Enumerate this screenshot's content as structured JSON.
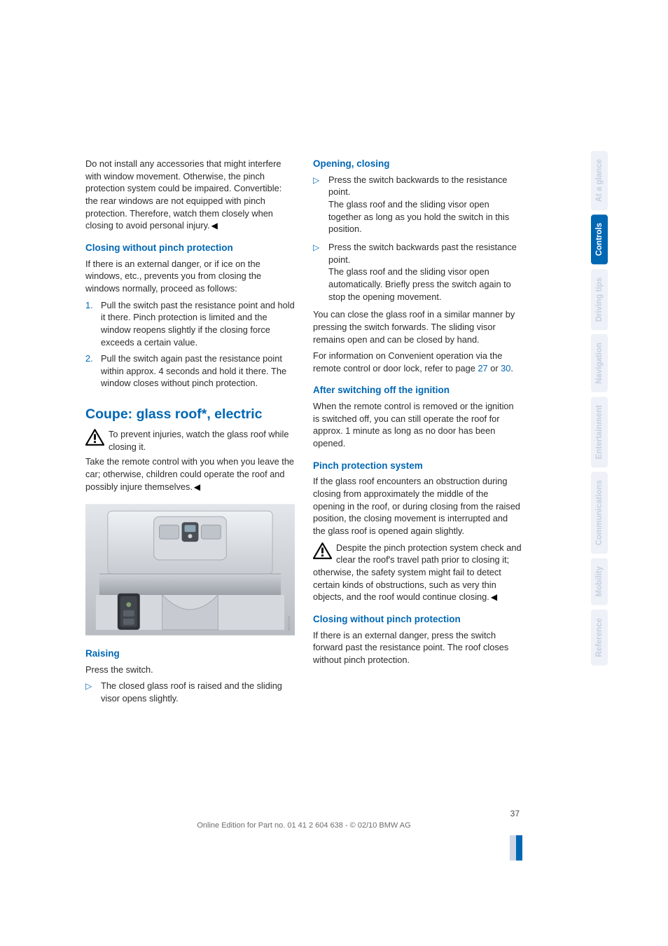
{
  "left": {
    "intro": "Do not install any accessories that might interfere with window movement. Otherwise, the pinch protection system could be impaired. Convertible: the rear windows are not equipped with pinch protection. Therefore, watch them closely when closing to avoid personal injury.",
    "h_cwpp": "Closing without pinch protection",
    "cwpp_intro": "If there is an external danger, or if ice on the windows, etc., prevents you from closing the windows normally, proceed as follows:",
    "ol": [
      "Pull the switch past the resistance point and hold it there. Pinch protection is limited and the window reopens slightly if the closing force exceeds a certain value.",
      "Pull the switch again past the resistance point within approx. 4 seconds and hold it there. The window closes without pinch protection."
    ],
    "h_section": "Coupe: glass roof*, electric",
    "warn1": "To prevent injuries, watch the glass roof while closing it.",
    "warn1b": "Take the remote control with you when you leave the car; otherwise, children could operate the roof and possibly injure themselves.",
    "h_raising": "Raising",
    "raising_p1": "Press the switch.",
    "raising_li": "The closed glass roof is raised and the sliding visor opens slightly."
  },
  "right": {
    "h_open": "Opening, closing",
    "open_li1a": "Press the switch backwards to the resistance point.",
    "open_li1b": "The glass roof and the sliding visor open together as long as you hold the switch in this position.",
    "open_li2a": "Press the switch backwards past the resistance point.",
    "open_li2b": "The glass roof and the sliding visor open automatically. Briefly press the switch again to stop the opening movement.",
    "open_p1": "You can close the glass roof in a similar manner by pressing the switch forwards. The sliding visor remains open and can be closed by hand.",
    "open_p2a": "For information on Convenient operation via the remote control or door lock, refer to page ",
    "open_p2_link1": "27",
    "open_p2b": " or ",
    "open_p2_link2": "30",
    "open_p2c": ".",
    "h_after": "After switching off the ignition",
    "after_p": "When the remote control is removed or the ignition is switched off, you can still operate the roof for approx. 1 minute as long as no door has been opened.",
    "h_pinch": "Pinch protection system",
    "pinch_p": "If the glass roof encounters an obstruction during closing from approximately the middle of the opening in the roof, or during closing from the raised position, the closing movement is interrupted and the glass roof is opened again slightly.",
    "warn2": "Despite the pinch protection system check and clear the roof's travel path prior to closing it; otherwise, the safety system might fail to detect certain kinds of obstructions, such as very thin objects, and the roof would continue closing.",
    "h_cwpp2": "Closing without pinch protection",
    "cwpp2_p": "If there is an external danger, press the switch forward past the resistance point. The roof closes without pinch protection."
  },
  "footer": {
    "page": "37",
    "line": "Online Edition for Part no. 01 41 2 604 638 - © 02/10 BMW AG"
  },
  "tabs": [
    "At a glance",
    "Controls",
    "Driving tips",
    "Navigation",
    "Entertainment",
    "Communications",
    "Mobility",
    "Reference"
  ],
  "active_tab_index": 1,
  "roof_image": {
    "bg_top": "#d8dbdf",
    "bg_bottom": "#bfc3c8",
    "panel_light": "#e5e8ec",
    "panel_dark": "#b6bac0",
    "button_dark": "#3b3f44",
    "button_light": "#6a6f75",
    "accent": "#8fa7b7",
    "shadow": "#8e9298"
  },
  "warn_icon": {
    "border": "#000000",
    "fill": "#ffffff"
  }
}
